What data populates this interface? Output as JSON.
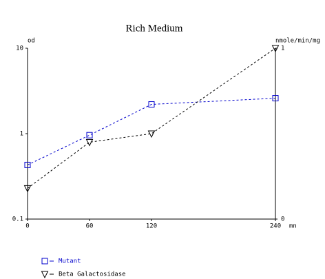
{
  "chart_data": {
    "type": "line",
    "title": "Rich Medium",
    "y_label": "od",
    "y2_label": "nmole/min/mg",
    "x_label": "mn",
    "x": [
      0,
      60,
      120,
      240
    ],
    "xlim": [
      0,
      240
    ],
    "xticks": [
      0,
      60,
      120,
      240
    ],
    "ylim": [
      0.1,
      10
    ],
    "yticks": [
      10,
      1,
      0.1
    ],
    "ylog": true,
    "y2lim": [
      0,
      1
    ],
    "y2ticks": [
      1,
      0
    ],
    "legend": "bottom-left",
    "series": [
      {
        "name": "Mutant",
        "color": "#0000cc",
        "marker": "square",
        "linestyle": "dashed",
        "values": [
          0.43,
          0.96,
          2.2,
          2.6
        ]
      },
      {
        "name": "Beta Galactosidase",
        "color": "#000000",
        "marker": "triangle-down",
        "linestyle": "dashed",
        "axis": "y2",
        "values": [
          0.18,
          0.45,
          0.5,
          1.0
        ]
      }
    ]
  }
}
